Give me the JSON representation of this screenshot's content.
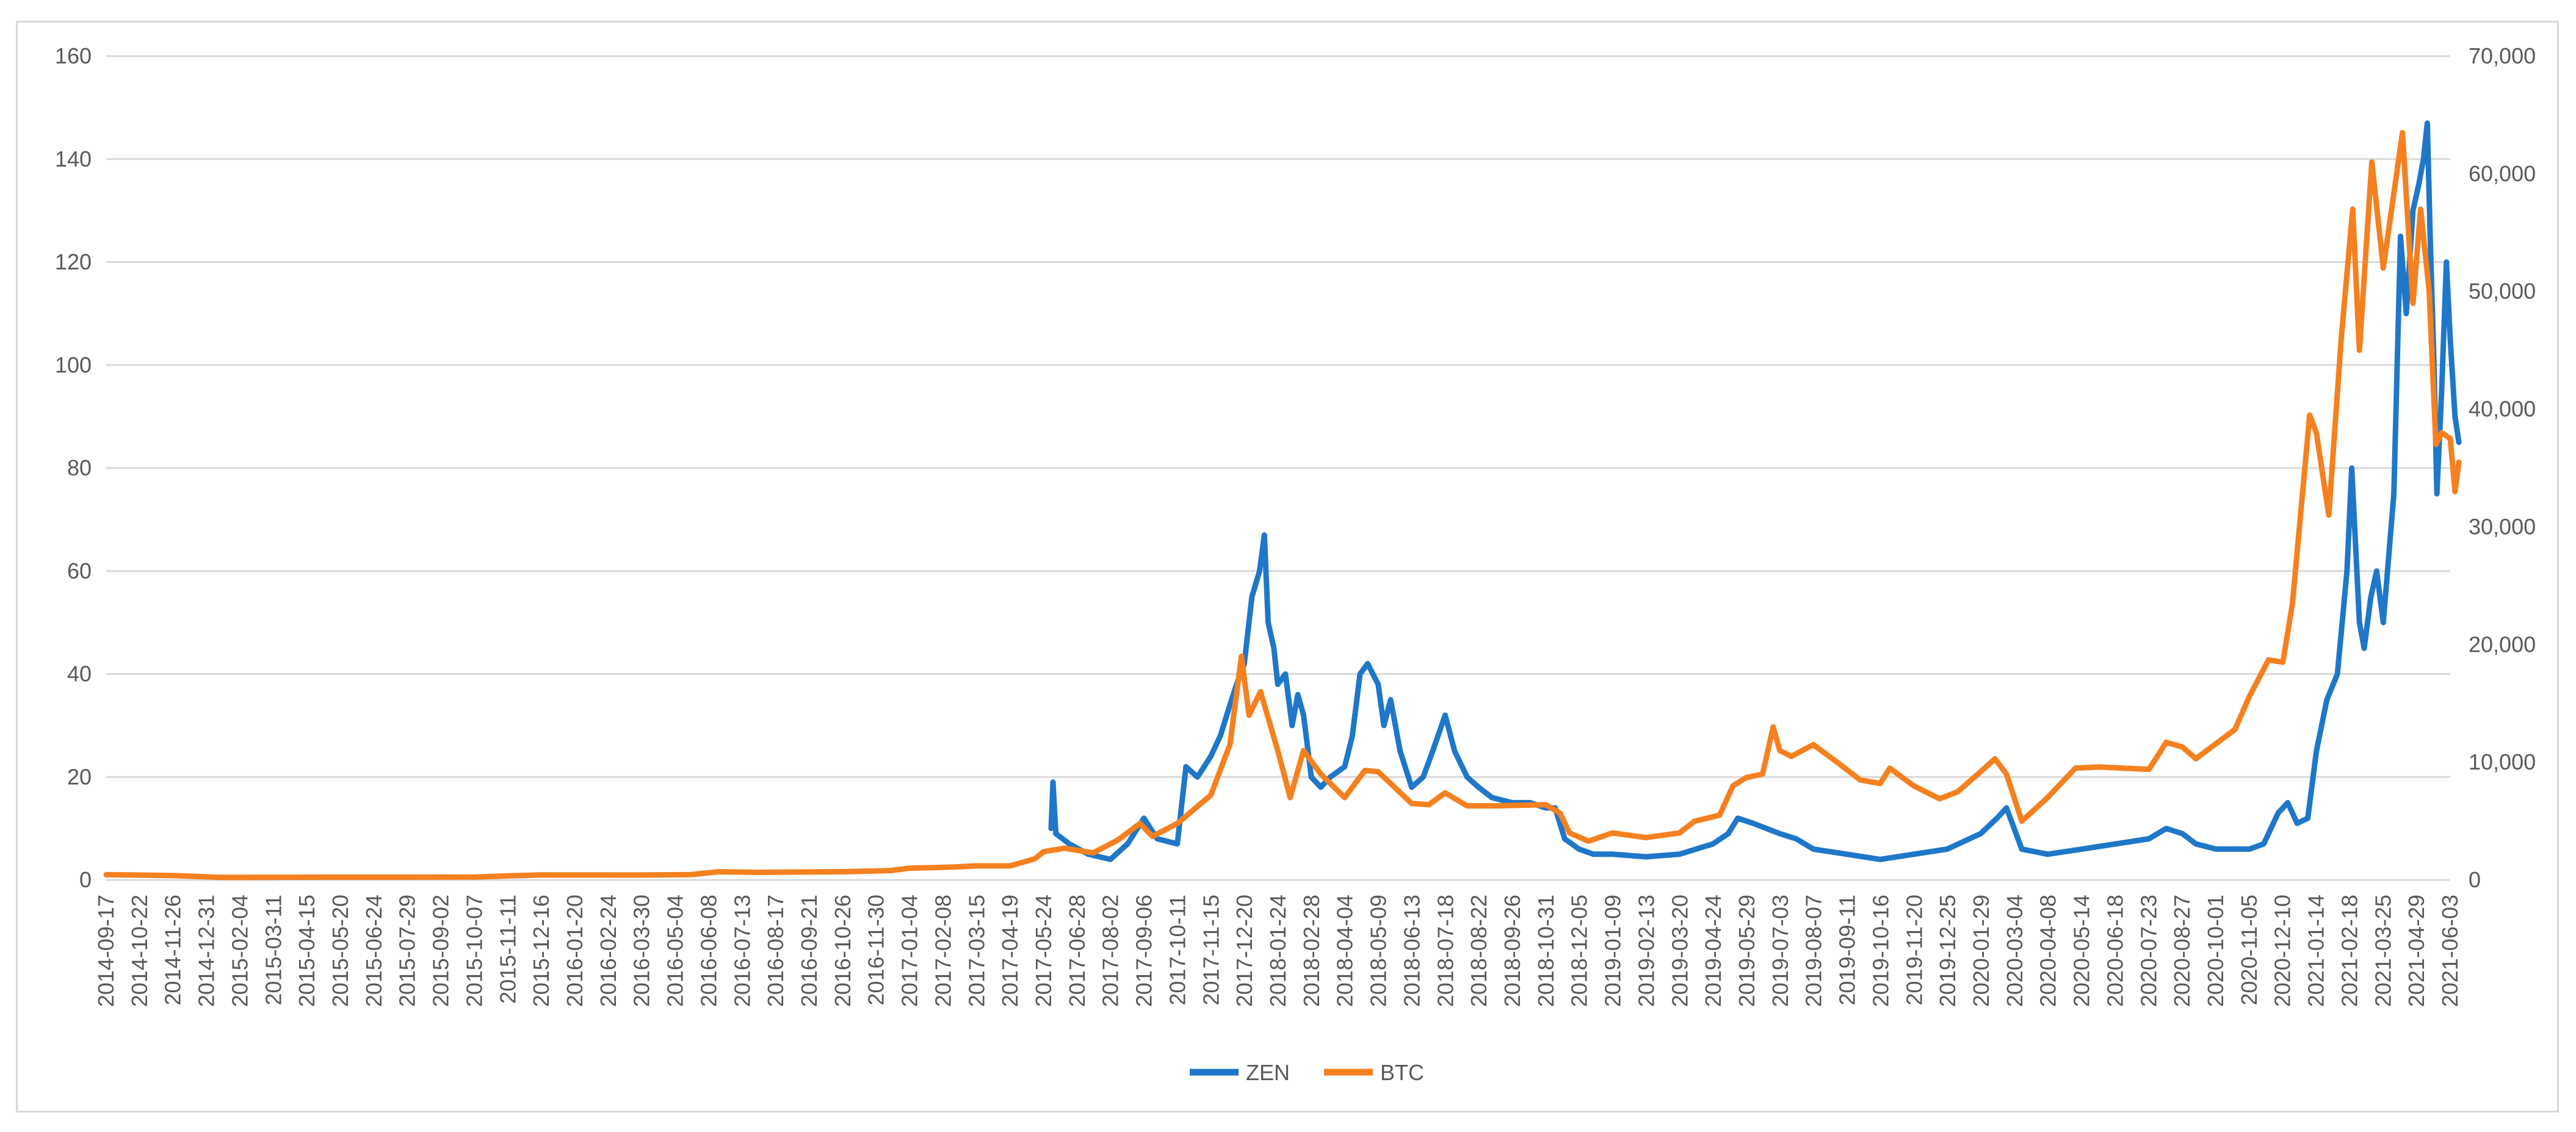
{
  "chart_data": {
    "type": "line",
    "title": "",
    "xlabel": "",
    "ylabel": "",
    "y2label": "",
    "ylim": [
      0,
      160
    ],
    "y2lim": [
      0,
      70000
    ],
    "yticks": [
      "0",
      "20",
      "40",
      "60",
      "80",
      "100",
      "120",
      "140",
      "160"
    ],
    "y2ticks": [
      "0",
      "10,000",
      "20,000",
      "30,000",
      "40,000",
      "50,000",
      "60,000",
      "70,000"
    ],
    "grid": true,
    "legend_position": "bottom",
    "categories": [
      "2014-09-17",
      "2014-10-22",
      "2014-11-26",
      "2014-12-31",
      "2015-02-04",
      "2015-03-11",
      "2015-04-15",
      "2015-05-20",
      "2015-06-24",
      "2015-07-29",
      "2015-09-02",
      "2015-10-07",
      "2015-11-11",
      "2015-12-16",
      "2016-01-20",
      "2016-02-24",
      "2016-03-30",
      "2016-05-04",
      "2016-06-08",
      "2016-07-13",
      "2016-08-17",
      "2016-09-21",
      "2016-10-26",
      "2016-11-30",
      "2017-01-04",
      "2017-02-08",
      "2017-03-15",
      "2017-04-19",
      "2017-05-24",
      "2017-06-28",
      "2017-08-02",
      "2017-09-06",
      "2017-10-11",
      "2017-11-15",
      "2017-12-20",
      "2018-01-24",
      "2018-02-28",
      "2018-04-04",
      "2018-05-09",
      "2018-06-13",
      "2018-07-18",
      "2018-08-22",
      "2018-09-26",
      "2018-10-31",
      "2018-12-05",
      "2019-01-09",
      "2019-02-13",
      "2019-03-20",
      "2019-04-24",
      "2019-05-29",
      "2019-07-03",
      "2019-08-07",
      "2019-09-11",
      "2019-10-16",
      "2019-11-20",
      "2019-12-25",
      "2020-01-29",
      "2020-03-04",
      "2020-04-08",
      "2020-05-14",
      "2020-06-18",
      "2020-07-23",
      "2020-08-27",
      "2020-10-01",
      "2020-11-05",
      "2020-12-10",
      "2021-01-14",
      "2021-02-18",
      "2021-03-25",
      "2021-04-29",
      "2021-06-03"
    ],
    "series": [
      {
        "name": "ZEN",
        "axis": "left",
        "color": "#1f77c9",
        "points": [
          [
            "2017-06-01",
            10
          ],
          [
            "2017-06-03",
            19
          ],
          [
            "2017-06-06",
            9
          ],
          [
            "2017-06-20",
            7
          ],
          [
            "2017-07-10",
            5
          ],
          [
            "2017-08-02",
            4
          ],
          [
            "2017-08-20",
            7
          ],
          [
            "2017-09-06",
            12
          ],
          [
            "2017-09-20",
            8
          ],
          [
            "2017-10-11",
            7
          ],
          [
            "2017-10-20",
            22
          ],
          [
            "2017-11-01",
            20
          ],
          [
            "2017-11-15",
            24
          ],
          [
            "2017-11-25",
            28
          ],
          [
            "2017-12-05",
            34
          ],
          [
            "2017-12-12",
            38
          ],
          [
            "2017-12-20",
            42
          ],
          [
            "2017-12-28",
            55
          ],
          [
            "2018-01-05",
            60
          ],
          [
            "2018-01-10",
            67
          ],
          [
            "2018-01-14",
            50
          ],
          [
            "2018-01-20",
            45
          ],
          [
            "2018-01-24",
            38
          ],
          [
            "2018-02-01",
            40
          ],
          [
            "2018-02-08",
            30
          ],
          [
            "2018-02-14",
            36
          ],
          [
            "2018-02-20",
            32
          ],
          [
            "2018-02-28",
            20
          ],
          [
            "2018-03-10",
            18
          ],
          [
            "2018-03-20",
            20
          ],
          [
            "2018-04-04",
            22
          ],
          [
            "2018-04-12",
            28
          ],
          [
            "2018-04-20",
            40
          ],
          [
            "2018-04-28",
            42
          ],
          [
            "2018-05-09",
            38
          ],
          [
            "2018-05-15",
            30
          ],
          [
            "2018-05-22",
            35
          ],
          [
            "2018-06-01",
            25
          ],
          [
            "2018-06-13",
            18
          ],
          [
            "2018-06-25",
            20
          ],
          [
            "2018-07-05",
            25
          ],
          [
            "2018-07-18",
            32
          ],
          [
            "2018-07-28",
            25
          ],
          [
            "2018-08-10",
            20
          ],
          [
            "2018-08-22",
            18
          ],
          [
            "2018-09-05",
            16
          ],
          [
            "2018-09-26",
            15
          ],
          [
            "2018-10-15",
            15
          ],
          [
            "2018-10-31",
            14
          ],
          [
            "2018-11-10",
            14
          ],
          [
            "2018-11-20",
            8
          ],
          [
            "2018-12-05",
            6
          ],
          [
            "2018-12-20",
            5
          ],
          [
            "2019-01-09",
            5
          ],
          [
            "2019-02-13",
            4.5
          ],
          [
            "2019-03-20",
            5
          ],
          [
            "2019-04-24",
            7
          ],
          [
            "2019-05-10",
            9
          ],
          [
            "2019-05-20",
            12
          ],
          [
            "2019-06-05",
            11
          ],
          [
            "2019-07-03",
            9
          ],
          [
            "2019-07-20",
            8
          ],
          [
            "2019-08-07",
            6
          ],
          [
            "2019-09-11",
            5
          ],
          [
            "2019-10-16",
            4
          ],
          [
            "2019-11-20",
            5
          ],
          [
            "2019-12-25",
            6
          ],
          [
            "2020-01-29",
            9
          ],
          [
            "2020-02-15",
            12
          ],
          [
            "2020-02-25",
            14
          ],
          [
            "2020-03-04",
            10
          ],
          [
            "2020-03-12",
            6
          ],
          [
            "2020-04-08",
            5
          ],
          [
            "2020-05-14",
            6
          ],
          [
            "2020-06-18",
            7
          ],
          [
            "2020-07-23",
            8
          ],
          [
            "2020-08-10",
            10
          ],
          [
            "2020-08-27",
            9
          ],
          [
            "2020-09-10",
            7
          ],
          [
            "2020-10-01",
            6
          ],
          [
            "2020-11-05",
            6
          ],
          [
            "2020-11-20",
            7
          ],
          [
            "2020-12-05",
            13
          ],
          [
            "2020-12-15",
            15
          ],
          [
            "2020-12-25",
            11
          ],
          [
            "2021-01-05",
            12
          ],
          [
            "2021-01-14",
            25
          ],
          [
            "2021-01-25",
            35
          ],
          [
            "2021-02-05",
            40
          ],
          [
            "2021-02-15",
            60
          ],
          [
            "2021-02-20",
            80
          ],
          [
            "2021-02-28",
            50
          ],
          [
            "2021-03-05",
            45
          ],
          [
            "2021-03-12",
            55
          ],
          [
            "2021-03-18",
            60
          ],
          [
            "2021-03-25",
            50
          ],
          [
            "2021-04-05",
            75
          ],
          [
            "2021-04-12",
            125
          ],
          [
            "2021-04-18",
            110
          ],
          [
            "2021-04-25",
            130
          ],
          [
            "2021-05-01",
            135
          ],
          [
            "2021-05-06",
            140
          ],
          [
            "2021-05-10",
            147
          ],
          [
            "2021-05-13",
            125
          ],
          [
            "2021-05-17",
            100
          ],
          [
            "2021-05-20",
            75
          ],
          [
            "2021-05-25",
            95
          ],
          [
            "2021-05-30",
            120
          ],
          [
            "2021-06-03",
            105
          ],
          [
            "2021-06-08",
            90
          ],
          [
            "2021-06-12",
            85
          ]
        ]
      },
      {
        "name": "BTC",
        "axis": "right",
        "color": "#f5801f",
        "points": [
          [
            "2014-09-17",
            450
          ],
          [
            "2014-11-26",
            380
          ],
          [
            "2015-01-14",
            220
          ],
          [
            "2015-05-20",
            240
          ],
          [
            "2015-10-07",
            250
          ],
          [
            "2015-11-11",
            350
          ],
          [
            "2015-12-16",
            430
          ],
          [
            "2016-03-30",
            420
          ],
          [
            "2016-05-20",
            450
          ],
          [
            "2016-06-18",
            700
          ],
          [
            "2016-07-30",
            650
          ],
          [
            "2016-10-26",
            700
          ],
          [
            "2016-12-15",
            800
          ],
          [
            "2017-01-04",
            1000
          ],
          [
            "2017-02-20",
            1100
          ],
          [
            "2017-03-15",
            1200
          ],
          [
            "2017-04-19",
            1200
          ],
          [
            "2017-05-15",
            1800
          ],
          [
            "2017-05-24",
            2400
          ],
          [
            "2017-06-15",
            2700
          ],
          [
            "2017-07-15",
            2300
          ],
          [
            "2017-08-10",
            3400
          ],
          [
            "2017-09-02",
            4800
          ],
          [
            "2017-09-15",
            3700
          ],
          [
            "2017-10-11",
            4800
          ],
          [
            "2017-11-15",
            7200
          ],
          [
            "2017-12-05",
            11500
          ],
          [
            "2017-12-17",
            19000
          ],
          [
            "2017-12-25",
            14000
          ],
          [
            "2018-01-06",
            16000
          ],
          [
            "2018-01-24",
            11000
          ],
          [
            "2018-02-06",
            7000
          ],
          [
            "2018-02-20",
            11000
          ],
          [
            "2018-03-10",
            9000
          ],
          [
            "2018-04-04",
            7000
          ],
          [
            "2018-04-25",
            9300
          ],
          [
            "2018-05-09",
            9200
          ],
          [
            "2018-06-13",
            6500
          ],
          [
            "2018-07-01",
            6400
          ],
          [
            "2018-07-18",
            7400
          ],
          [
            "2018-08-10",
            6300
          ],
          [
            "2018-09-10",
            6300
          ],
          [
            "2018-10-31",
            6400
          ],
          [
            "2018-11-15",
            5700
          ],
          [
            "2018-11-25",
            4000
          ],
          [
            "2018-12-15",
            3300
          ],
          [
            "2019-01-09",
            4000
          ],
          [
            "2019-02-13",
            3600
          ],
          [
            "2019-03-20",
            4000
          ],
          [
            "2019-04-05",
            5000
          ],
          [
            "2019-05-01",
            5500
          ],
          [
            "2019-05-15",
            8000
          ],
          [
            "2019-05-29",
            8700
          ],
          [
            "2019-06-15",
            9000
          ],
          [
            "2019-06-26",
            13000
          ],
          [
            "2019-07-03",
            11000
          ],
          [
            "2019-07-15",
            10500
          ],
          [
            "2019-08-07",
            11500
          ],
          [
            "2019-09-01",
            10000
          ],
          [
            "2019-09-25",
            8500
          ],
          [
            "2019-10-16",
            8200
          ],
          [
            "2019-10-26",
            9500
          ],
          [
            "2019-11-20",
            8000
          ],
          [
            "2019-12-17",
            6900
          ],
          [
            "2020-01-05",
            7500
          ],
          [
            "2020-01-29",
            9200
          ],
          [
            "2020-02-13",
            10300
          ],
          [
            "2020-02-25",
            9000
          ],
          [
            "2020-03-12",
            5000
          ],
          [
            "2020-04-08",
            7000
          ],
          [
            "2020-05-07",
            9500
          ],
          [
            "2020-06-01",
            9600
          ],
          [
            "2020-07-23",
            9400
          ],
          [
            "2020-08-10",
            11700
          ],
          [
            "2020-08-27",
            11300
          ],
          [
            "2020-09-10",
            10300
          ],
          [
            "2020-10-21",
            12800
          ],
          [
            "2020-11-05",
            15600
          ],
          [
            "2020-11-25",
            18700
          ],
          [
            "2020-12-10",
            18500
          ],
          [
            "2020-12-20",
            23500
          ],
          [
            "2021-01-07",
            39500
          ],
          [
            "2021-01-14",
            38000
          ],
          [
            "2021-01-27",
            31000
          ],
          [
            "2021-02-09",
            46000
          ],
          [
            "2021-02-21",
            57000
          ],
          [
            "2021-02-28",
            45000
          ],
          [
            "2021-03-13",
            61000
          ],
          [
            "2021-03-25",
            52000
          ],
          [
            "2021-04-14",
            63500
          ],
          [
            "2021-04-25",
            49000
          ],
          [
            "2021-05-03",
            57000
          ],
          [
            "2021-05-12",
            50000
          ],
          [
            "2021-05-19",
            37000
          ],
          [
            "2021-05-25",
            38000
          ],
          [
            "2021-06-03",
            37500
          ],
          [
            "2021-06-08",
            33000
          ],
          [
            "2021-06-12",
            35500
          ]
        ]
      }
    ]
  }
}
